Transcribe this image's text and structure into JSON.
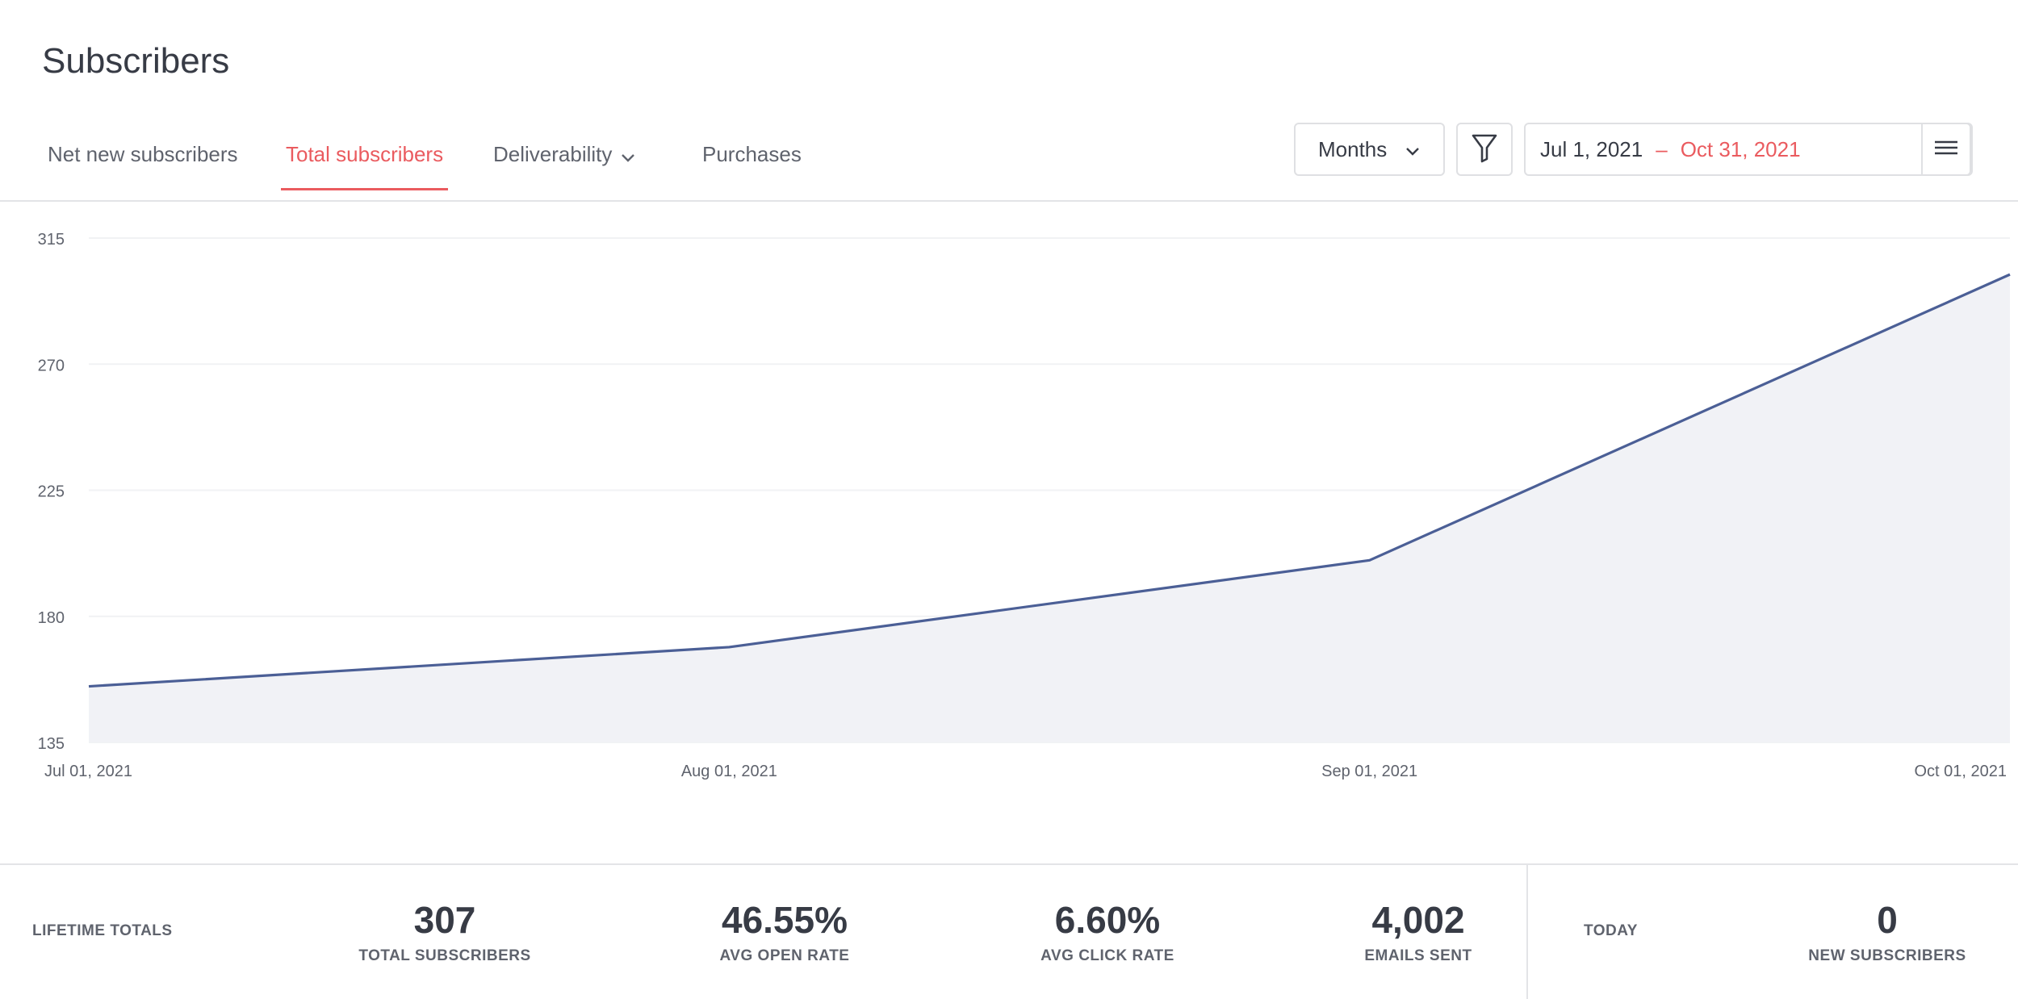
{
  "page": {
    "title": "Subscribers"
  },
  "tabs": [
    {
      "label": "Net new subscribers",
      "active": false
    },
    {
      "label": "Total subscribers",
      "active": true
    },
    {
      "label": "Deliverability",
      "active": false,
      "has_dropdown": true
    },
    {
      "label": "Purchases",
      "active": false
    }
  ],
  "controls": {
    "period_select": {
      "value": "Months",
      "icon": "chevron-down-icon"
    },
    "filter_icon": "funnel-icon",
    "date_range": {
      "start": "Jul 1, 2021",
      "separator": "–",
      "end": "Oct 31, 2021"
    },
    "menu_icon": "hamburger-icon"
  },
  "colors": {
    "accent": "#ea5b5f",
    "line": "#4b5f96",
    "area": "#f1f2f6",
    "text": "#373b45",
    "muted": "#5f636d"
  },
  "chart_data": {
    "type": "area",
    "x": [
      "Jul 01, 2021",
      "Aug 01, 2021",
      "Sep 01, 2021",
      "Oct 01, 2021"
    ],
    "series": [
      {
        "values": [
          155,
          169,
          200,
          302
        ]
      }
    ],
    "y_ticks": [
      135,
      180,
      225,
      270,
      315
    ],
    "ylim": [
      135,
      315
    ],
    "grid": true
  },
  "footer": {
    "lifetime_label": "LIFETIME TOTALS",
    "stats": [
      {
        "value": "307",
        "label": "TOTAL SUBSCRIBERS"
      },
      {
        "value": "46.55%",
        "label": "AVG OPEN RATE"
      },
      {
        "value": "6.60%",
        "label": "AVG CLICK RATE"
      },
      {
        "value": "4,002",
        "label": "EMAILS SENT"
      }
    ],
    "today_label": "TODAY",
    "today_stat": {
      "value": "0",
      "label": "NEW SUBSCRIBERS"
    }
  }
}
